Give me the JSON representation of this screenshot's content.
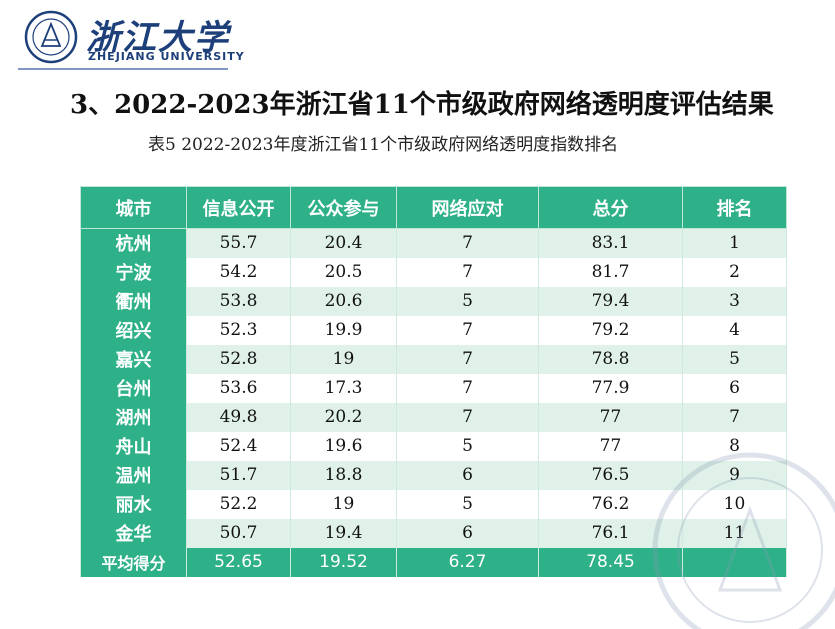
{
  "header": {
    "brand_cn": "浙江大学",
    "brand_en": "ZHEJIANG UNIVERSITY"
  },
  "title": "3、2022-2023年浙江省11个市级政府网络透明度评估结果",
  "subtitle": "表5  2022-2023年度浙江省11个市级政府网络透明度指数排名",
  "table": {
    "columns": [
      "城市",
      "信息公开",
      "公众参与",
      "网络应对",
      "总分",
      "排名"
    ],
    "rows": [
      [
        "杭州",
        "55.7",
        "20.4",
        "7",
        "83.1",
        "1"
      ],
      [
        "宁波",
        "54.2",
        "20.5",
        "7",
        "81.7",
        "2"
      ],
      [
        "衢州",
        "53.8",
        "20.6",
        "5",
        "79.4",
        "3"
      ],
      [
        "绍兴",
        "52.3",
        "19.9",
        "7",
        "79.2",
        "4"
      ],
      [
        "嘉兴",
        "52.8",
        "19",
        "7",
        "78.8",
        "5"
      ],
      [
        "台州",
        "53.6",
        "17.3",
        "7",
        "77.9",
        "6"
      ],
      [
        "湖州",
        "49.8",
        "20.2",
        "7",
        "77",
        "7"
      ],
      [
        "舟山",
        "52.4",
        "19.6",
        "5",
        "77",
        "8"
      ],
      [
        "温州",
        "51.7",
        "18.8",
        "6",
        "76.5",
        "9"
      ],
      [
        "丽水",
        "52.2",
        "19",
        "5",
        "76.2",
        "10"
      ],
      [
        "金华",
        "50.7",
        "19.4",
        "6",
        "76.1",
        "11"
      ]
    ],
    "average": [
      "平均得分",
      "52.65",
      "19.52",
      "6.27",
      "78.45",
      ""
    ]
  },
  "colors": {
    "header_green": "#2eb089",
    "row_tint": "#dff1e8",
    "brand_blue": "#1d3f7a"
  },
  "icons": [
    "university-seal-icon",
    "watermark-seal-icon"
  ]
}
